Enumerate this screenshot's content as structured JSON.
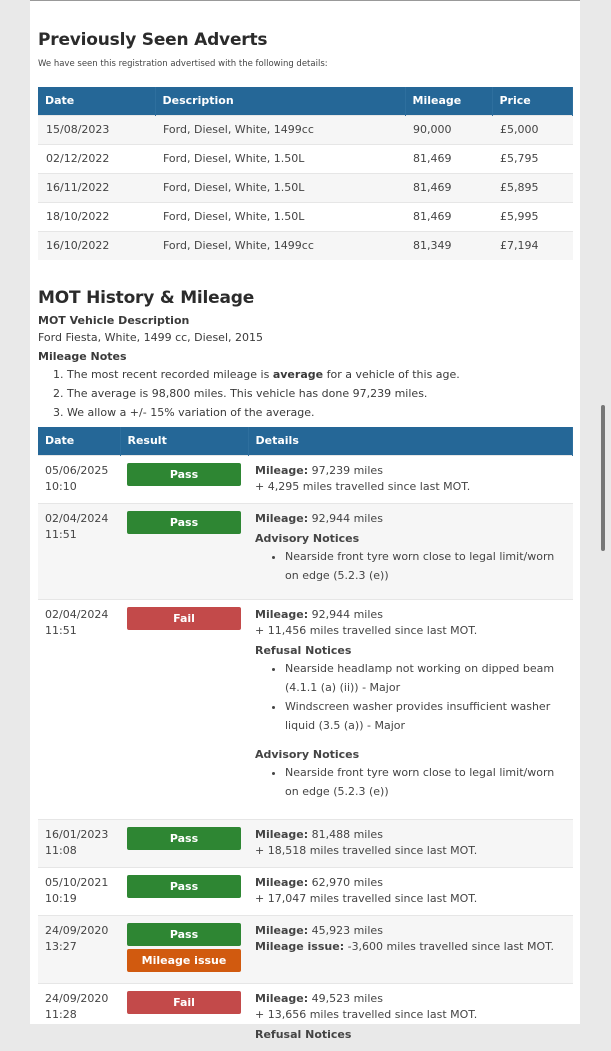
{
  "adverts": {
    "title": "Previously Seen Adverts",
    "subtitle": "We have seen this registration advertised with the following details:",
    "headers": [
      "Date",
      "Description",
      "Mileage",
      "Price"
    ],
    "rows": [
      [
        "15/08/2023",
        "Ford, Diesel, White, 1499cc",
        "90,000",
        "£5,000"
      ],
      [
        "02/12/2022",
        "Ford, Diesel, White, 1.50L",
        "81,469",
        "£5,795"
      ],
      [
        "16/11/2022",
        "Ford, Diesel, White, 1.50L",
        "81,469",
        "£5,895"
      ],
      [
        "18/10/2022",
        "Ford, Diesel, White, 1.50L",
        "81,469",
        "£5,995"
      ],
      [
        "16/10/2022",
        "Ford, Diesel, White, 1499cc",
        "81,349",
        "£7,194"
      ]
    ]
  },
  "mot": {
    "title": "MOT History & Mileage",
    "vehicle_label": "MOT Vehicle Description",
    "vehicle": "Ford Fiesta, White, 1499 cc, Diesel, 2015",
    "notes_label": "Mileage Notes",
    "note1_pre": "The most recent recorded mileage is ",
    "note1_bold": "average",
    "note1_post": " for a vehicle of this age.",
    "note2": "The average is 98,800 miles. This vehicle has done 97,239 miles.",
    "note3": "We allow a +/- 15% variation of the average.",
    "headers": [
      "Date",
      "Result",
      "Details"
    ],
    "mileage_label": "Mileage:",
    "issue_label": "Mileage issue:",
    "refusal_label": "Refusal Notices",
    "advisory_label": "Advisory Notices",
    "rows": [
      {
        "date": "05/06/2025",
        "time": "10:10",
        "result": "Pass",
        "mileage": "97,239 miles",
        "since": "+ 4,295 miles travelled since last MOT."
      },
      {
        "date": "02/04/2024",
        "time": "11:51",
        "result": "Pass",
        "mileage": "92,944 miles",
        "advisory": [
          "Nearside front tyre worn close to legal limit/worn on edge (5.2.3 (e))"
        ]
      },
      {
        "date": "02/04/2024",
        "time": "11:51",
        "result": "Fail",
        "mileage": "92,944 miles",
        "since": "+ 11,456 miles travelled since last MOT.",
        "refusal": [
          "Nearside headlamp not working on dipped beam (4.1.1 (a) (ii)) - Major",
          "Windscreen washer provides insufficient washer liquid (3.5 (a)) - Major"
        ],
        "advisory": [
          "Nearside front tyre worn close to legal limit/worn on edge (5.2.3 (e))"
        ]
      },
      {
        "date": "16/01/2023",
        "time": "11:08",
        "result": "Pass",
        "mileage": "81,488 miles",
        "since": "+ 18,518 miles travelled since last MOT."
      },
      {
        "date": "05/10/2021",
        "time": "10:19",
        "result": "Pass",
        "mileage": "62,970 miles",
        "since": "+ 17,047 miles travelled since last MOT."
      },
      {
        "date": "24/09/2020",
        "time": "13:27",
        "result": "Pass",
        "result2": "Mileage issue",
        "mileage": "45,923 miles",
        "issue": "-3,600 miles travelled since last MOT."
      },
      {
        "date": "24/09/2020",
        "time": "11:28",
        "result": "Fail",
        "mileage": "49,523 miles",
        "since": "+ 13,656 miles travelled since last MOT.",
        "refusal_partial": true
      }
    ]
  },
  "colors": {
    "header": "#256797",
    "pass": "#2e8633",
    "fail": "#c34a4a",
    "mileage_issue": "#d15a0f"
  }
}
